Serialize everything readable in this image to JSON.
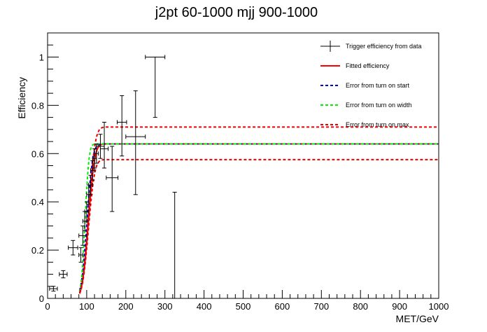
{
  "chart_data": {
    "type": "scatter",
    "title": "j2pt 60-1000 mjj 900-1000",
    "xlabel": "MET/GeV",
    "ylabel": "Efficiency",
    "xlim": [
      0,
      1000
    ],
    "ylim": [
      0,
      1.1
    ],
    "xticks": [
      0,
      100,
      200,
      300,
      400,
      500,
      600,
      700,
      800,
      900,
      1000
    ],
    "xtick_labels": [
      "0",
      "100",
      "200",
      "300",
      "400",
      "500",
      "600",
      "700",
      "800",
      "900",
      "1000"
    ],
    "yticks": [
      0,
      0.2,
      0.4,
      0.6,
      0.8,
      1.0
    ],
    "ytick_labels": [
      "0",
      "0.2",
      "0.4",
      "0.6",
      "0.8",
      "1"
    ],
    "legend_position": "top-right",
    "legend": [
      {
        "label": "Trigger efficiency from data",
        "style": "errorbar",
        "color": "#000000"
      },
      {
        "label": "Fitted efficiency",
        "style": "solid",
        "color": "#ff0000"
      },
      {
        "label": "Error from turn on start",
        "style": "dashed",
        "color": "#0000cc"
      },
      {
        "label": "Error from turn on width",
        "style": "dashed",
        "color": "#00ee00"
      },
      {
        "label": "Error from turn on max",
        "style": "dashed",
        "color": "#ee0000"
      }
    ],
    "points": [
      {
        "x": 15,
        "y": 0.04,
        "xerr": 10,
        "yerr_low": 0.01,
        "yerr_high": 0.01
      },
      {
        "x": 40,
        "y": 0.1,
        "xerr": 10,
        "yerr_low": 0.015,
        "yerr_high": 0.015
      },
      {
        "x": 65,
        "y": 0.21,
        "xerr": 12,
        "yerr_low": 0.03,
        "yerr_high": 0.03
      },
      {
        "x": 85,
        "y": 0.18,
        "xerr": 5,
        "yerr_low": 0.03,
        "yerr_high": 0.03
      },
      {
        "x": 90,
        "y": 0.26,
        "xerr": 10,
        "yerr_low": 0.04,
        "yerr_high": 0.04
      },
      {
        "x": 95,
        "y": 0.32,
        "xerr": 5,
        "yerr_low": 0.04,
        "yerr_high": 0.04
      },
      {
        "x": 100,
        "y": 0.36,
        "xerr": 5,
        "yerr_low": 0.04,
        "yerr_high": 0.04
      },
      {
        "x": 105,
        "y": 0.43,
        "xerr": 5,
        "yerr_low": 0.04,
        "yerr_high": 0.04
      },
      {
        "x": 110,
        "y": 0.47,
        "xerr": 5,
        "yerr_low": 0.04,
        "yerr_high": 0.04
      },
      {
        "x": 115,
        "y": 0.53,
        "xerr": 5,
        "yerr_low": 0.04,
        "yerr_high": 0.04
      },
      {
        "x": 120,
        "y": 0.58,
        "xerr": 5,
        "yerr_low": 0.04,
        "yerr_high": 0.04
      },
      {
        "x": 125,
        "y": 0.6,
        "xerr": 5,
        "yerr_low": 0.04,
        "yerr_high": 0.04
      },
      {
        "x": 135,
        "y": 0.63,
        "xerr": 10,
        "yerr_low": 0.05,
        "yerr_high": 0.05
      },
      {
        "x": 145,
        "y": 0.62,
        "xerr": 10,
        "yerr_low": 0.08,
        "yerr_high": 0.11
      },
      {
        "x": 165,
        "y": 0.5,
        "xerr": 15,
        "yerr_low": 0.14,
        "yerr_high": 0.13
      },
      {
        "x": 190,
        "y": 0.73,
        "xerr": 12,
        "yerr_low": 0.14,
        "yerr_high": 0.11
      },
      {
        "x": 225,
        "y": 0.67,
        "xerr": 25,
        "yerr_low": 0.24,
        "yerr_high": 0.19
      },
      {
        "x": 275,
        "y": 1.0,
        "xerr": 25,
        "yerr_low": 0.25,
        "yerr_high": 0.0
      },
      {
        "x": 325,
        "y": 0.0,
        "xerr": 0,
        "yerr_low": 0.0,
        "yerr_high": 0.44
      }
    ],
    "fits": [
      {
        "name": "Fitted efficiency",
        "color": "#ff0000",
        "dashed": false,
        "x0": 82,
        "x1": 1000,
        "start": 80,
        "width": 70,
        "max": 0.64
      },
      {
        "name": "Error from turn on start",
        "color": "#0000cc",
        "dashed": true,
        "x0": 82,
        "x1": 1000,
        "start": 78,
        "width": 65,
        "max": 0.64
      },
      {
        "name": "Error from turn on width",
        "color": "#00ee00",
        "dashed": true,
        "x0": 82,
        "x1": 1000,
        "start": 80,
        "width": 45,
        "max": 0.64
      },
      {
        "name": "Error from turn on max (low)",
        "color": "#ee0000",
        "dashed": true,
        "x0": 82,
        "x1": 1000,
        "start": 80,
        "width": 70,
        "max": 0.575
      },
      {
        "name": "Error from turn on max (high)",
        "color": "#ee0000",
        "dashed": true,
        "x0": 82,
        "x1": 1000,
        "start": 80,
        "width": 72,
        "max": 0.71
      }
    ]
  }
}
